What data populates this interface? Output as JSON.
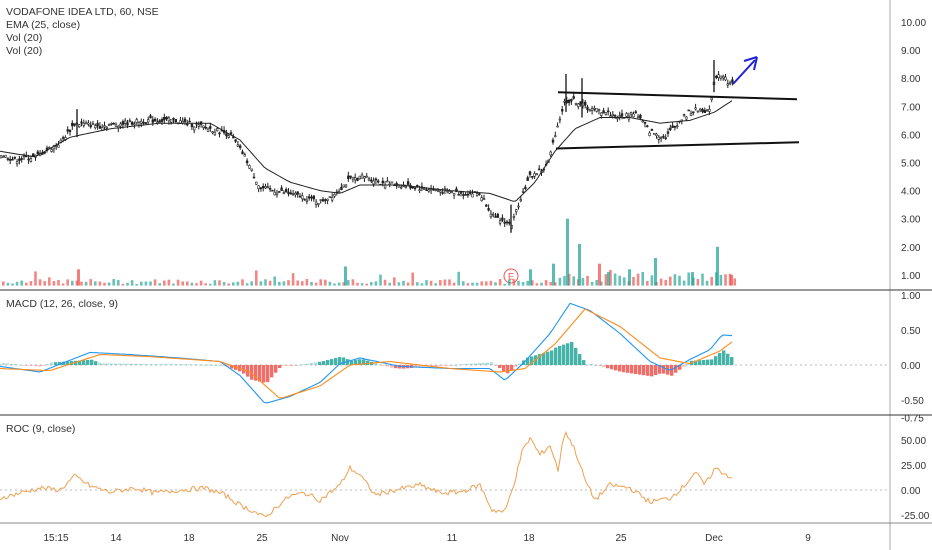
{
  "colors": {
    "up": "#26a69a",
    "down": "#ef5350",
    "candle": "#222222",
    "ema": "#222222",
    "trendline": "#111111",
    "arrow": "#1e22d6",
    "macd": "#2196f3",
    "signal": "#ff8c1a",
    "roc": "#f0a050",
    "grid_zero": "#bbbbbb",
    "axis_text": "#333333",
    "divider": "#333333"
  },
  "legend": {
    "title": "VODAFONE IDEA LTD, 60, NSE",
    "ema": "EMA (25, close)",
    "vol1": "Vol (20)",
    "vol2": "Vol (20)",
    "macd": "MACD (12, 26, close, 9)",
    "roc": "ROC (9, close)"
  },
  "earnings_marker": "E",
  "chart_data": [
    {
      "type": "candlestick",
      "pane": "price",
      "title": "VODAFONE IDEA LTD, 60, NSE",
      "indicator": "EMA (25, close)",
      "ylim": [
        0.5,
        10.5
      ],
      "yticks": [
        "10.00",
        "9.00",
        "8.00",
        "7.00",
        "6.00",
        "5.00",
        "4.00",
        "3.00",
        "2.00",
        "1.00"
      ],
      "xticks": [
        "15:15",
        "14",
        "18",
        "25",
        "Nov",
        "11",
        "18",
        "25",
        "Dec",
        "9"
      ],
      "close_anchors": [
        [
          0,
          5.3
        ],
        [
          15,
          5.1
        ],
        [
          35,
          5.2
        ],
        [
          60,
          5.7
        ],
        [
          75,
          6.4
        ],
        [
          100,
          6.3
        ],
        [
          125,
          6.4
        ],
        [
          150,
          6.5
        ],
        [
          175,
          6.5
        ],
        [
          210,
          6.2
        ],
        [
          230,
          6.0
        ],
        [
          245,
          5.2
        ],
        [
          260,
          4.1
        ],
        [
          275,
          4.0
        ],
        [
          300,
          3.8
        ],
        [
          320,
          3.6
        ],
        [
          335,
          3.9
        ],
        [
          350,
          4.4
        ],
        [
          365,
          4.5
        ],
        [
          380,
          4.3
        ],
        [
          400,
          4.2
        ],
        [
          420,
          4.1
        ],
        [
          440,
          4.0
        ],
        [
          460,
          3.9
        ],
        [
          480,
          3.9
        ],
        [
          495,
          3.0
        ],
        [
          505,
          2.9
        ],
        [
          512,
          2.8
        ],
        [
          520,
          3.7
        ],
        [
          530,
          4.5
        ],
        [
          545,
          4.8
        ],
        [
          550,
          5.2
        ],
        [
          555,
          6.0
        ],
        [
          565,
          7.2
        ],
        [
          575,
          7.2
        ],
        [
          590,
          6.9
        ],
        [
          605,
          6.8
        ],
        [
          620,
          6.6
        ],
        [
          635,
          6.8
        ],
        [
          650,
          6.1
        ],
        [
          665,
          5.9
        ],
        [
          680,
          6.5
        ],
        [
          690,
          6.8
        ],
        [
          700,
          6.9
        ],
        [
          710,
          6.8
        ],
        [
          713,
          7.8
        ],
        [
          718,
          8.2
        ],
        [
          725,
          8.0
        ],
        [
          730,
          7.8
        ]
      ],
      "ema_anchors": [
        [
          0,
          5.4
        ],
        [
          35,
          5.2
        ],
        [
          70,
          5.9
        ],
        [
          110,
          6.2
        ],
        [
          160,
          6.4
        ],
        [
          210,
          6.4
        ],
        [
          240,
          5.8
        ],
        [
          265,
          4.8
        ],
        [
          290,
          4.3
        ],
        [
          320,
          4.0
        ],
        [
          340,
          3.9
        ],
        [
          360,
          4.2
        ],
        [
          400,
          4.2
        ],
        [
          450,
          4.0
        ],
        [
          490,
          3.9
        ],
        [
          515,
          3.6
        ],
        [
          535,
          4.3
        ],
        [
          555,
          5.4
        ],
        [
          575,
          6.2
        ],
        [
          600,
          6.6
        ],
        [
          630,
          6.6
        ],
        [
          660,
          6.4
        ],
        [
          690,
          6.5
        ],
        [
          715,
          6.8
        ],
        [
          732,
          7.2
        ]
      ],
      "trendlines": [
        {
          "from": [
            "Nov 20",
            7.5
          ],
          "to": [
            "Dec 10",
            7.25
          ]
        },
        {
          "from": [
            "Nov 20",
            5.5
          ],
          "to": [
            "Dec 10",
            5.72
          ]
        }
      ],
      "annotation": "arrow pointing up-right after breakout"
    },
    {
      "type": "bar",
      "pane": "volume",
      "indicator": "Vol (20)",
      "notable_spikes_price_axis": [
        {
          "near": "Nov 20",
          "value": 3.0
        },
        {
          "near": "Nov 22",
          "value": 2.1
        },
        {
          "near": "Dec 2",
          "value": 2.0
        },
        {
          "near": "Nov 28",
          "value": 1.6
        }
      ]
    },
    {
      "type": "line",
      "pane": "macd",
      "indicator": "MACD (12, 26, close, 9)",
      "ylim": [
        -0.75,
        1.05
      ],
      "yticks": [
        "1.00",
        "0.50",
        "0.00",
        "-0.50",
        "-0.75"
      ],
      "series": [
        {
          "name": "MACD",
          "anchors": [
            [
              0,
              -0.02
            ],
            [
              40,
              -0.1
            ],
            [
              90,
              0.18
            ],
            [
              130,
              0.15
            ],
            [
              180,
              0.1
            ],
            [
              220,
              0.05
            ],
            [
              240,
              -0.15
            ],
            [
              265,
              -0.55
            ],
            [
              290,
              -0.45
            ],
            [
              320,
              -0.25
            ],
            [
              340,
              0.02
            ],
            [
              360,
              0.1
            ],
            [
              400,
              -0.02
            ],
            [
              450,
              -0.05
            ],
            [
              490,
              -0.05
            ],
            [
              505,
              -0.22
            ],
            [
              525,
              0.05
            ],
            [
              550,
              0.45
            ],
            [
              570,
              0.88
            ],
            [
              590,
              0.78
            ],
            [
              620,
              0.45
            ],
            [
              650,
              0.05
            ],
            [
              670,
              -0.08
            ],
            [
              690,
              0.08
            ],
            [
              710,
              0.22
            ],
            [
              722,
              0.43
            ],
            [
              732,
              0.42
            ]
          ]
        },
        {
          "name": "Signal",
          "anchors": [
            [
              0,
              -0.05
            ],
            [
              50,
              -0.08
            ],
            [
              100,
              0.15
            ],
            [
              150,
              0.12
            ],
            [
              220,
              0.05
            ],
            [
              250,
              -0.1
            ],
            [
              280,
              -0.48
            ],
            [
              320,
              -0.3
            ],
            [
              350,
              0.0
            ],
            [
              390,
              0.05
            ],
            [
              450,
              -0.05
            ],
            [
              500,
              -0.1
            ],
            [
              525,
              -0.05
            ],
            [
              555,
              0.3
            ],
            [
              585,
              0.8
            ],
            [
              620,
              0.55
            ],
            [
              660,
              0.1
            ],
            [
              690,
              0.02
            ],
            [
              720,
              0.2
            ],
            [
              732,
              0.33
            ]
          ]
        }
      ],
      "histogram": "green above zero, red below zero"
    },
    {
      "type": "line",
      "pane": "roc",
      "indicator": "ROC (9, close)",
      "ylim": [
        -36,
        70
      ],
      "yticks": [
        "50.00",
        "25.00",
        "0.00",
        "-25.00"
      ],
      "series": [
        {
          "name": "ROC",
          "anchors": [
            [
              0,
              -8
            ],
            [
              20,
              -3
            ],
            [
              40,
              2
            ],
            [
              60,
              0
            ],
            [
              75,
              14
            ],
            [
              90,
              4
            ],
            [
              110,
              -2
            ],
            [
              135,
              2
            ],
            [
              155,
              -3
            ],
            [
              180,
              0
            ],
            [
              205,
              2
            ],
            [
              225,
              -5
            ],
            [
              240,
              -15
            ],
            [
              255,
              -22
            ],
            [
              265,
              -28
            ],
            [
              275,
              -18
            ],
            [
              290,
              -6
            ],
            [
              305,
              -3
            ],
            [
              320,
              -10
            ],
            [
              340,
              5
            ],
            [
              350,
              22
            ],
            [
              360,
              15
            ],
            [
              375,
              -5
            ],
            [
              395,
              0
            ],
            [
              420,
              5
            ],
            [
              440,
              -3
            ],
            [
              460,
              -2
            ],
            [
              480,
              5
            ],
            [
              492,
              -20
            ],
            [
              505,
              -22
            ],
            [
              515,
              10
            ],
            [
              522,
              38
            ],
            [
              530,
              52
            ],
            [
              540,
              35
            ],
            [
              550,
              45
            ],
            [
              558,
              20
            ],
            [
              565,
              60
            ],
            [
              575,
              40
            ],
            [
              585,
              10
            ],
            [
              595,
              -10
            ],
            [
              610,
              5
            ],
            [
              630,
              2
            ],
            [
              650,
              -12
            ],
            [
              670,
              -8
            ],
            [
              685,
              5
            ],
            [
              695,
              18
            ],
            [
              705,
              5
            ],
            [
              715,
              22
            ],
            [
              732,
              12
            ]
          ]
        }
      ]
    }
  ]
}
